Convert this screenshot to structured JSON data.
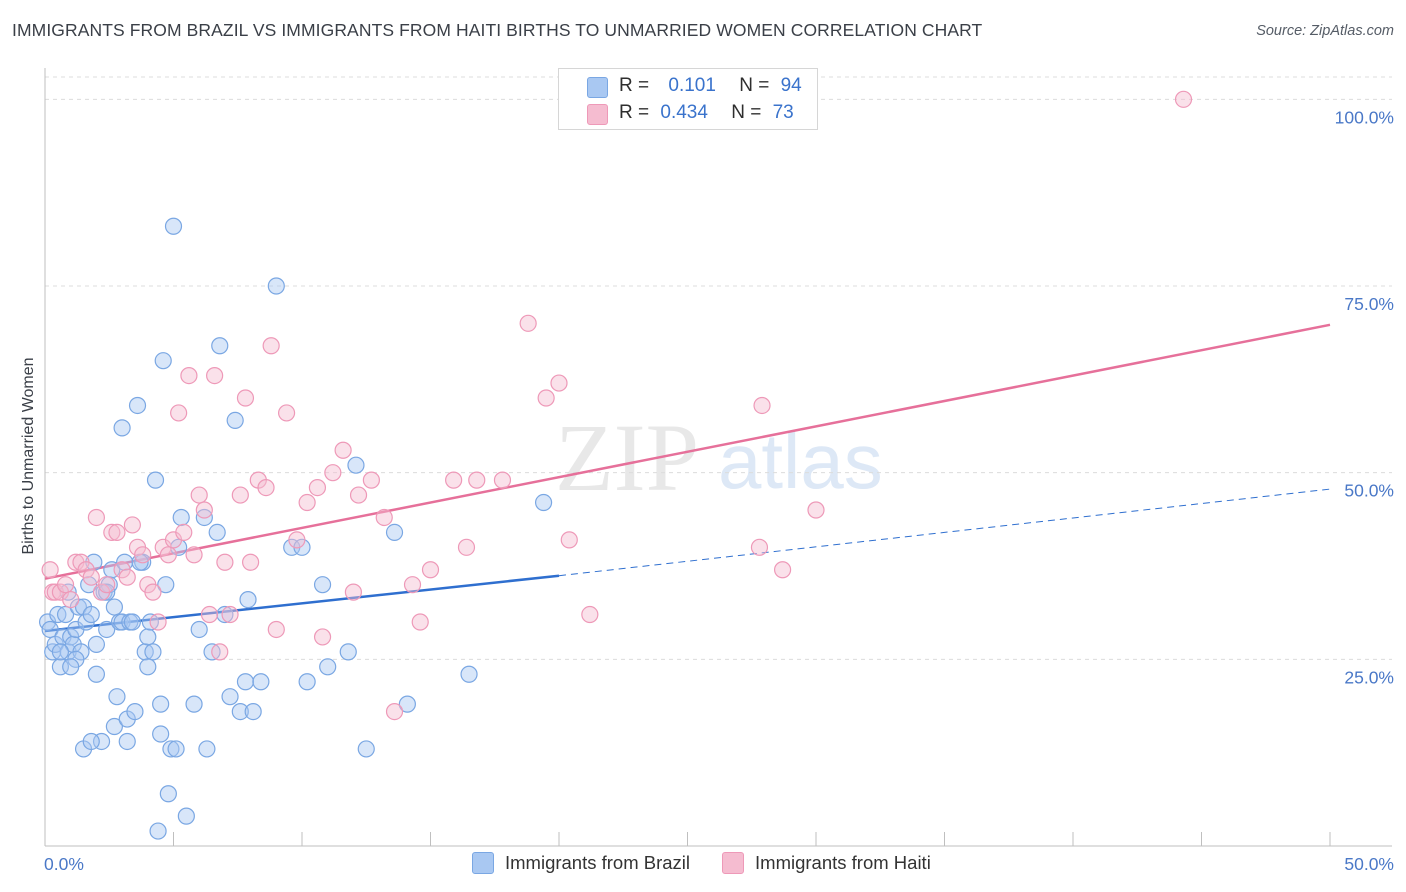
{
  "title": "IMMIGRANTS FROM BRAZIL VS IMMIGRANTS FROM HAITI BIRTHS TO UNMARRIED WOMEN CORRELATION CHART",
  "source": "Source: ZipAtlas.com",
  "watermark": {
    "zip": "ZIP",
    "atlas": "atlas"
  },
  "legend": {
    "r_label": "R =",
    "n_label": "N =",
    "series": [
      {
        "r": "0.101",
        "n": "94"
      },
      {
        "r": "0.434",
        "n": "73"
      }
    ]
  },
  "colors": {
    "brazil_fill": "#a9c8f2",
    "brazil_stroke": "#7aa7e3",
    "brazil_line": "#2f6fcf",
    "haiti_fill": "#f5bcd0",
    "haiti_stroke": "#ee99b8",
    "haiti_line": "#e6709a",
    "tick_text": "#4a78c7",
    "grid": "#dcdcdc"
  },
  "chart_data": {
    "type": "scatter",
    "title": "IMMIGRANTS FROM BRAZIL VS IMMIGRANTS FROM HAITI BIRTHS TO UNMARRIED WOMEN CORRELATION CHART",
    "xlabel": "",
    "ylabel": "Births to Unmarried Women",
    "xlim": [
      0,
      50
    ],
    "ylim": [
      0,
      105
    ],
    "x_tick_labels": [
      "0.0%",
      "50.0%"
    ],
    "y_ticks": [
      25,
      50,
      75,
      100
    ],
    "y_tick_labels": [
      "25.0%",
      "50.0%",
      "75.0%",
      "100.0%"
    ],
    "series": [
      {
        "name": "Immigrants from Brazil",
        "r": 0.101,
        "n": 94,
        "trend": {
          "x0": 0,
          "y0": 28.8,
          "x1": 20,
          "y1": 36.2,
          "dashed_to_x": 50,
          "dashed_to_y": 47.8
        },
        "points": [
          [
            0.1,
            30
          ],
          [
            0.2,
            29
          ],
          [
            0.3,
            26
          ],
          [
            0.4,
            27
          ],
          [
            0.5,
            31
          ],
          [
            0.6,
            24
          ],
          [
            0.7,
            28
          ],
          [
            0.8,
            31
          ],
          [
            0.9,
            26
          ],
          [
            1.0,
            28
          ],
          [
            1.1,
            27
          ],
          [
            1.2,
            29
          ],
          [
            1.3,
            32
          ],
          [
            1.4,
            26
          ],
          [
            1.5,
            32
          ],
          [
            1.6,
            30
          ],
          [
            1.7,
            35
          ],
          [
            1.8,
            31
          ],
          [
            1.9,
            38
          ],
          [
            2.0,
            23
          ],
          [
            2.2,
            14
          ],
          [
            2.3,
            34
          ],
          [
            2.4,
            29
          ],
          [
            2.5,
            35
          ],
          [
            2.6,
            37
          ],
          [
            2.7,
            32
          ],
          [
            2.8,
            20
          ],
          [
            2.9,
            30
          ],
          [
            3.0,
            30
          ],
          [
            3.1,
            38
          ],
          [
            1.5,
            13
          ],
          [
            1.8,
            14
          ],
          [
            2.7,
            16
          ],
          [
            3.0,
            56
          ],
          [
            3.2,
            17
          ],
          [
            3.3,
            30
          ],
          [
            3.5,
            18
          ],
          [
            3.6,
            59
          ],
          [
            3.8,
            38
          ],
          [
            3.9,
            26
          ],
          [
            4.0,
            28
          ],
          [
            4.1,
            30
          ],
          [
            4.2,
            26
          ],
          [
            4.3,
            49
          ],
          [
            4.4,
            2
          ],
          [
            4.5,
            19
          ],
          [
            4.6,
            65
          ],
          [
            4.7,
            35
          ],
          [
            4.8,
            7
          ],
          [
            4.9,
            13
          ],
          [
            4.5,
            15
          ],
          [
            5.0,
            83
          ],
          [
            5.1,
            13
          ],
          [
            5.2,
            40
          ],
          [
            5.3,
            44
          ],
          [
            5.5,
            4
          ],
          [
            5.8,
            19
          ],
          [
            6.0,
            29
          ],
          [
            6.2,
            44
          ],
          [
            6.3,
            13
          ],
          [
            6.5,
            26
          ],
          [
            6.7,
            42
          ],
          [
            6.8,
            67
          ],
          [
            7.0,
            31
          ],
          [
            7.2,
            20
          ],
          [
            7.4,
            57
          ],
          [
            7.6,
            18
          ],
          [
            7.8,
            22
          ],
          [
            7.9,
            33
          ],
          [
            8.1,
            18
          ],
          [
            8.4,
            22
          ],
          [
            9.0,
            75
          ],
          [
            9.6,
            40
          ],
          [
            10.0,
            40
          ],
          [
            10.2,
            22
          ],
          [
            10.8,
            35
          ],
          [
            11.0,
            24
          ],
          [
            11.8,
            26
          ],
          [
            12.1,
            51
          ],
          [
            12.5,
            13
          ],
          [
            13.6,
            42
          ],
          [
            14.1,
            19
          ],
          [
            16.5,
            23
          ],
          [
            19.4,
            46
          ],
          [
            3.4,
            30
          ],
          [
            2.0,
            27
          ],
          [
            1.2,
            25
          ],
          [
            0.9,
            34
          ],
          [
            2.4,
            34
          ],
          [
            3.7,
            38
          ],
          [
            0.6,
            26
          ],
          [
            1.0,
            24
          ],
          [
            4.0,
            24
          ],
          [
            3.2,
            14
          ]
        ]
      },
      {
        "name": "Immigrants from Haiti",
        "r": 0.434,
        "n": 73,
        "trend": {
          "x0": 0,
          "y0": 35.8,
          "x1": 50,
          "y1": 69.8
        },
        "points": [
          [
            0.2,
            37
          ],
          [
            0.3,
            34
          ],
          [
            0.4,
            34
          ],
          [
            0.6,
            34
          ],
          [
            0.8,
            35
          ],
          [
            1.0,
            33
          ],
          [
            1.2,
            38
          ],
          [
            1.4,
            38
          ],
          [
            1.6,
            37
          ],
          [
            1.8,
            36
          ],
          [
            2.0,
            44
          ],
          [
            2.2,
            34
          ],
          [
            2.4,
            35
          ],
          [
            2.6,
            42
          ],
          [
            2.8,
            42
          ],
          [
            3.0,
            37
          ],
          [
            3.2,
            36
          ],
          [
            3.4,
            43
          ],
          [
            3.6,
            40
          ],
          [
            3.8,
            39
          ],
          [
            4.0,
            35
          ],
          [
            4.2,
            34
          ],
          [
            4.4,
            30
          ],
          [
            4.6,
            40
          ],
          [
            4.8,
            39
          ],
          [
            5.0,
            41
          ],
          [
            5.2,
            58
          ],
          [
            5.4,
            42
          ],
          [
            5.6,
            63
          ],
          [
            5.8,
            39
          ],
          [
            6.0,
            47
          ],
          [
            6.2,
            45
          ],
          [
            6.4,
            31
          ],
          [
            6.6,
            63
          ],
          [
            6.8,
            26
          ],
          [
            7.0,
            38
          ],
          [
            7.2,
            31
          ],
          [
            7.6,
            47
          ],
          [
            7.8,
            60
          ],
          [
            8.0,
            38
          ],
          [
            8.3,
            49
          ],
          [
            8.6,
            48
          ],
          [
            8.8,
            67
          ],
          [
            9.0,
            29
          ],
          [
            9.4,
            58
          ],
          [
            9.8,
            41
          ],
          [
            10.2,
            46
          ],
          [
            10.6,
            48
          ],
          [
            10.8,
            28
          ],
          [
            11.2,
            50
          ],
          [
            11.6,
            53
          ],
          [
            12.0,
            34
          ],
          [
            12.2,
            47
          ],
          [
            12.7,
            49
          ],
          [
            13.2,
            44
          ],
          [
            13.6,
            18
          ],
          [
            14.3,
            35
          ],
          [
            14.6,
            30
          ],
          [
            15.0,
            37
          ],
          [
            15.9,
            49
          ],
          [
            16.4,
            40
          ],
          [
            16.8,
            49
          ],
          [
            17.8,
            49
          ],
          [
            18.8,
            70
          ],
          [
            19.5,
            60
          ],
          [
            20.0,
            62
          ],
          [
            20.4,
            41
          ],
          [
            21.2,
            31
          ],
          [
            27.8,
            40
          ],
          [
            27.9,
            59
          ],
          [
            28.7,
            37
          ],
          [
            30.0,
            45
          ],
          [
            44.3,
            100
          ]
        ]
      }
    ]
  },
  "bottom_legend": [
    "Immigrants from Brazil",
    "Immigrants from Haiti"
  ]
}
